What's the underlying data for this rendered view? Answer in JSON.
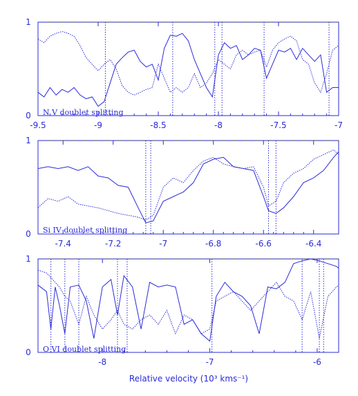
{
  "colors": {
    "ink": "#2a2ad8",
    "background": "#ffffff"
  },
  "xlabel": "Relative velocity (10³ kms⁻¹)",
  "chart_data": [
    {
      "type": "line",
      "label": "N V doublet splitting",
      "xlim": [
        -9.5,
        -7.0
      ],
      "ylim": [
        0,
        1
      ],
      "x_ticks": [
        -9.5,
        -9,
        -8.5,
        -8,
        -7.5,
        -7
      ],
      "x_tick_labels": [
        "-9.5",
        "-9",
        "-8.5",
        "-8",
        "-7.5",
        "-7"
      ],
      "y_ticks": [
        0,
        1
      ],
      "y_tick_labels": [
        "0",
        "1"
      ],
      "reference_lines_x": [
        -8.94,
        -8.38,
        -8.03,
        -7.97,
        -7.62,
        -7.08
      ],
      "series": [
        {
          "style": "solid",
          "x": [
            -9.5,
            -9.45,
            -9.4,
            -9.35,
            -9.3,
            -9.25,
            -9.2,
            -9.15,
            -9.1,
            -9.05,
            -9.0,
            -8.95,
            -8.9,
            -8.85,
            -8.8,
            -8.75,
            -8.7,
            -8.65,
            -8.6,
            -8.55,
            -8.5,
            -8.45,
            -8.4,
            -8.35,
            -8.3,
            -8.25,
            -8.2,
            -8.15,
            -8.1,
            -8.05,
            -8.0,
            -7.95,
            -7.9,
            -7.85,
            -7.8,
            -7.75,
            -7.7,
            -7.65,
            -7.6,
            -7.55,
            -7.5,
            -7.45,
            -7.4,
            -7.35,
            -7.3,
            -7.25,
            -7.2,
            -7.15,
            -7.1,
            -7.05,
            -7.0
          ],
          "y": [
            0.25,
            0.2,
            0.3,
            0.22,
            0.28,
            0.25,
            0.3,
            0.22,
            0.18,
            0.2,
            0.1,
            0.15,
            0.35,
            0.55,
            0.62,
            0.68,
            0.7,
            0.58,
            0.52,
            0.55,
            0.38,
            0.72,
            0.86,
            0.85,
            0.88,
            0.8,
            0.6,
            0.45,
            0.3,
            0.2,
            0.65,
            0.78,
            0.72,
            0.75,
            0.6,
            0.65,
            0.72,
            0.7,
            0.4,
            0.55,
            0.7,
            0.68,
            0.72,
            0.6,
            0.72,
            0.65,
            0.58,
            0.65,
            0.25,
            0.3,
            0.3
          ]
        },
        {
          "style": "dotted",
          "x": [
            -9.5,
            -9.45,
            -9.4,
            -9.35,
            -9.3,
            -9.25,
            -9.2,
            -9.15,
            -9.1,
            -9.05,
            -9.0,
            -8.95,
            -8.9,
            -8.85,
            -8.8,
            -8.75,
            -8.7,
            -8.65,
            -8.6,
            -8.55,
            -8.5,
            -8.45,
            -8.4,
            -8.35,
            -8.3,
            -8.25,
            -8.2,
            -8.15,
            -8.1,
            -8.05,
            -8.0,
            -7.95,
            -7.9,
            -7.85,
            -7.8,
            -7.75,
            -7.7,
            -7.65,
            -7.6,
            -7.55,
            -7.5,
            -7.45,
            -7.4,
            -7.35,
            -7.3,
            -7.25,
            -7.2,
            -7.15,
            -7.1,
            -7.05,
            -7.0
          ],
          "y": [
            0.82,
            0.78,
            0.85,
            0.88,
            0.9,
            0.88,
            0.85,
            0.75,
            0.62,
            0.55,
            0.48,
            0.55,
            0.6,
            0.5,
            0.32,
            0.25,
            0.22,
            0.25,
            0.28,
            0.3,
            0.55,
            0.4,
            0.25,
            0.3,
            0.25,
            0.3,
            0.45,
            0.3,
            0.35,
            0.45,
            0.6,
            0.55,
            0.5,
            0.65,
            0.7,
            0.65,
            0.68,
            0.7,
            0.52,
            0.7,
            0.78,
            0.82,
            0.85,
            0.8,
            0.6,
            0.55,
            0.35,
            0.25,
            0.45,
            0.7,
            0.75
          ]
        }
      ]
    },
    {
      "type": "line",
      "label": "Si IV doublet splitting",
      "xlim": [
        -7.5,
        -6.3
      ],
      "ylim": [
        0,
        1
      ],
      "x_ticks": [
        -7.4,
        -7.2,
        -7.0,
        -6.8,
        -6.6,
        -6.4
      ],
      "x_tick_labels": [
        "-7.4",
        "-7.2",
        "-7",
        "-6.8",
        "-6.6",
        "-6.4"
      ],
      "y_ticks": [
        0,
        1
      ],
      "y_tick_labels": [
        "0",
        "1"
      ],
      "reference_lines_x": [
        -7.07,
        -7.05,
        -6.58,
        -6.55
      ],
      "series": [
        {
          "style": "solid",
          "x": [
            -7.5,
            -7.46,
            -7.42,
            -7.38,
            -7.34,
            -7.3,
            -7.26,
            -7.22,
            -7.18,
            -7.14,
            -7.1,
            -7.07,
            -7.04,
            -7.0,
            -6.96,
            -6.92,
            -6.88,
            -6.84,
            -6.8,
            -6.76,
            -6.72,
            -6.68,
            -6.64,
            -6.6,
            -6.58,
            -6.55,
            -6.52,
            -6.48,
            -6.44,
            -6.4,
            -6.36,
            -6.32,
            -6.3
          ],
          "y": [
            0.7,
            0.72,
            0.7,
            0.72,
            0.68,
            0.72,
            0.62,
            0.6,
            0.52,
            0.5,
            0.28,
            0.12,
            0.14,
            0.35,
            0.4,
            0.45,
            0.55,
            0.75,
            0.8,
            0.82,
            0.72,
            0.7,
            0.68,
            0.4,
            0.25,
            0.22,
            0.28,
            0.4,
            0.55,
            0.6,
            0.68,
            0.82,
            0.88
          ]
        },
        {
          "style": "dotted",
          "x": [
            -7.5,
            -7.46,
            -7.42,
            -7.38,
            -7.34,
            -7.3,
            -7.26,
            -7.22,
            -7.18,
            -7.14,
            -7.1,
            -7.07,
            -7.04,
            -7.0,
            -6.96,
            -6.92,
            -6.88,
            -6.84,
            -6.8,
            -6.76,
            -6.72,
            -6.68,
            -6.64,
            -6.6,
            -6.58,
            -6.55,
            -6.52,
            -6.48,
            -6.44,
            -6.4,
            -6.36,
            -6.32,
            -6.3
          ],
          "y": [
            0.28,
            0.38,
            0.35,
            0.4,
            0.32,
            0.3,
            0.28,
            0.25,
            0.22,
            0.2,
            0.18,
            0.15,
            0.2,
            0.5,
            0.6,
            0.55,
            0.68,
            0.78,
            0.82,
            0.75,
            0.72,
            0.7,
            0.72,
            0.5,
            0.3,
            0.35,
            0.55,
            0.65,
            0.7,
            0.8,
            0.85,
            0.9,
            0.85
          ]
        }
      ]
    },
    {
      "type": "line",
      "label": "O VI doublet splitting",
      "xlim": [
        -8.6,
        -5.8
      ],
      "ylim": [
        0,
        1
      ],
      "x_ticks": [
        -8,
        -7,
        -6
      ],
      "x_tick_labels": [
        "-8",
        "-7",
        "-6"
      ],
      "y_ticks": [
        0,
        1
      ],
      "y_tick_labels": [
        "0",
        "1"
      ],
      "reference_lines_x": [
        -8.48,
        -8.35,
        -8.22,
        -7.86,
        -7.77,
        -6.98,
        -6.14,
        -5.98,
        -5.94
      ],
      "series": [
        {
          "style": "solid",
          "x": [
            -8.6,
            -8.52,
            -8.48,
            -8.44,
            -8.4,
            -8.35,
            -8.3,
            -8.22,
            -8.15,
            -8.08,
            -8.0,
            -7.92,
            -7.86,
            -7.8,
            -7.72,
            -7.64,
            -7.56,
            -7.48,
            -7.4,
            -7.32,
            -7.24,
            -7.16,
            -7.08,
            -7.0,
            -6.94,
            -6.86,
            -6.78,
            -6.7,
            -6.62,
            -6.54,
            -6.46,
            -6.38,
            -6.3,
            -6.22,
            -6.14,
            -6.06,
            -5.98,
            -5.9,
            -5.82,
            -5.8
          ],
          "y": [
            0.72,
            0.65,
            0.25,
            0.7,
            0.5,
            0.2,
            0.7,
            0.72,
            0.55,
            0.15,
            0.7,
            0.78,
            0.4,
            0.82,
            0.7,
            0.25,
            0.75,
            0.7,
            0.72,
            0.7,
            0.3,
            0.35,
            0.2,
            0.12,
            0.6,
            0.75,
            0.65,
            0.6,
            0.5,
            0.2,
            0.7,
            0.68,
            0.75,
            0.95,
            0.98,
            1.0,
            0.98,
            0.95,
            0.92,
            0.9
          ]
        },
        {
          "style": "dotted",
          "x": [
            -8.6,
            -8.52,
            -8.48,
            -8.44,
            -8.4,
            -8.35,
            -8.3,
            -8.22,
            -8.15,
            -8.08,
            -8.0,
            -7.92,
            -7.86,
            -7.8,
            -7.72,
            -7.64,
            -7.56,
            -7.48,
            -7.4,
            -7.32,
            -7.24,
            -7.16,
            -7.08,
            -7.0,
            -6.94,
            -6.86,
            -6.78,
            -6.7,
            -6.62,
            -6.54,
            -6.46,
            -6.38,
            -6.3,
            -6.22,
            -6.14,
            -6.06,
            -5.98,
            -5.9,
            -5.82,
            -5.8
          ],
          "y": [
            0.88,
            0.85,
            0.8,
            0.75,
            0.7,
            0.6,
            0.55,
            0.3,
            0.6,
            0.4,
            0.25,
            0.35,
            0.45,
            0.3,
            0.25,
            0.35,
            0.4,
            0.3,
            0.45,
            0.2,
            0.4,
            0.35,
            0.2,
            0.25,
            0.55,
            0.6,
            0.65,
            0.55,
            0.45,
            0.55,
            0.65,
            0.75,
            0.6,
            0.55,
            0.35,
            0.65,
            0.15,
            0.6,
            0.7,
            0.72
          ]
        }
      ]
    }
  ]
}
